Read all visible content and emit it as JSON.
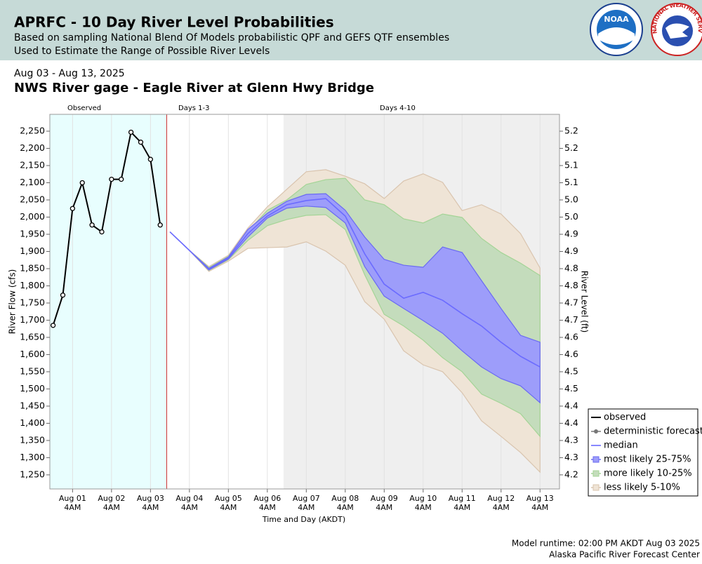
{
  "header": {
    "title": "APRFC - 10 Day River Level Probabilities",
    "subtitle1": "Based on sampling National Blend Of Models probabilistic QPF and GEFS QTF ensembles",
    "subtitle2": "Used to Estimate the Range of Possible River Levels",
    "noaa_logo_text": "NOAA",
    "nws_logo_text": "NATIONAL WEATHER SERVICE"
  },
  "chart_data": {
    "type": "probability_bands",
    "date_range": "Aug 03 - Aug 13, 2025",
    "title": "NWS River gage - Eagle River at Glenn Hwy Bridge",
    "xlabel": "Time and Day (AKDT)",
    "ylabel": "River Flow (cfs)",
    "y2label": "River Level (ft)",
    "xlim": [
      "2025-07-31T14:00",
      "2025-08-13T16:00"
    ],
    "xticks": [
      {
        "value": "2025-08-01T04:00",
        "label": [
          "Aug 01",
          "4AM"
        ]
      },
      {
        "value": "2025-08-02T04:00",
        "label": [
          "Aug 02",
          "4AM"
        ]
      },
      {
        "value": "2025-08-03T04:00",
        "label": [
          "Aug 03",
          "4AM"
        ]
      },
      {
        "value": "2025-08-04T04:00",
        "label": [
          "Aug 04",
          "4AM"
        ]
      },
      {
        "value": "2025-08-05T04:00",
        "label": [
          "Aug 05",
          "4AM"
        ]
      },
      {
        "value": "2025-08-06T04:00",
        "label": [
          "Aug 06",
          "4AM"
        ]
      },
      {
        "value": "2025-08-07T04:00",
        "label": [
          "Aug 07",
          "4AM"
        ]
      },
      {
        "value": "2025-08-08T04:00",
        "label": [
          "Aug 08",
          "4AM"
        ]
      },
      {
        "value": "2025-08-09T04:00",
        "label": [
          "Aug 09",
          "4AM"
        ]
      },
      {
        "value": "2025-08-10T04:00",
        "label": [
          "Aug 10",
          "4AM"
        ]
      },
      {
        "value": "2025-08-11T04:00",
        "label": [
          "Aug 11",
          "4AM"
        ]
      },
      {
        "value": "2025-08-12T04:00",
        "label": [
          "Aug 12",
          "4AM"
        ]
      },
      {
        "value": "2025-08-13T04:00",
        "label": [
          "Aug 13",
          "4AM"
        ]
      }
    ],
    "ylim": [
      1209,
      2299
    ],
    "yticks": [
      {
        "value": 1250,
        "label": "1,250"
      },
      {
        "value": 1300,
        "label": "1,300"
      },
      {
        "value": 1350,
        "label": "1,350"
      },
      {
        "value": 1400,
        "label": "1,400"
      },
      {
        "value": 1450,
        "label": "1,450"
      },
      {
        "value": 1500,
        "label": "1,500"
      },
      {
        "value": 1550,
        "label": "1,550"
      },
      {
        "value": 1600,
        "label": "1,600"
      },
      {
        "value": 1650,
        "label": "1,650"
      },
      {
        "value": 1700,
        "label": "1,700"
      },
      {
        "value": 1750,
        "label": "1,750"
      },
      {
        "value": 1800,
        "label": "1,800"
      },
      {
        "value": 1850,
        "label": "1,850"
      },
      {
        "value": 1900,
        "label": "1,900"
      },
      {
        "value": 1950,
        "label": "1,950"
      },
      {
        "value": 2000,
        "label": "2,000"
      },
      {
        "value": 2050,
        "label": "2,050"
      },
      {
        "value": 2100,
        "label": "2,100"
      },
      {
        "value": 2150,
        "label": "2,150"
      },
      {
        "value": 2200,
        "label": "2,200"
      },
      {
        "value": 2250,
        "label": "2,250"
      }
    ],
    "y2lim": [
      4.159,
      5.249
    ],
    "y2ticks": [
      4.2,
      {
        "value": 4.25,
        "label": "4.3"
      },
      4.3,
      {
        "value": 4.35,
        "label": "4.4"
      },
      4.4,
      {
        "value": 4.45,
        "label": "4.5"
      },
      4.5,
      {
        "value": 4.55,
        "label": "4.6"
      },
      4.6,
      {
        "value": 4.65,
        "label": "4.7"
      },
      4.7,
      {
        "value": 4.75,
        "label": "4.8"
      },
      4.8,
      {
        "value": 4.85,
        "label": "4.9"
      },
      4.9,
      {
        "value": 4.95,
        "label": "5.0"
      },
      {
        "value": 5,
        "label": "5.0"
      },
      {
        "value": 5.05,
        "label": "5.1"
      },
      5.1,
      {
        "value": 5.15,
        "label": "5.2"
      },
      5.2
    ],
    "grid": true,
    "regions": [
      {
        "label": "Observed",
        "start": "2025-07-31T14:00",
        "end": "2025-08-03T14:00",
        "color": "#e8fefe"
      },
      {
        "label": "Days 1-3",
        "start": "2025-08-03T14:00",
        "end": "2025-08-06T14:00",
        "color": "#ffffff"
      },
      {
        "label": "Days 4-10",
        "start": "2025-08-06T14:00",
        "end": "2025-08-13T16:00",
        "color": "#efefef"
      }
    ],
    "observed_end_line_color": "#cc3333",
    "observed": {
      "name": "observed",
      "color": "#000000",
      "x": [
        "2025-07-31T16:00",
        "2025-07-31T22:00",
        "2025-08-01T04:00",
        "2025-08-01T10:00",
        "2025-08-01T16:00",
        "2025-08-01T22:00",
        "2025-08-02T04:00",
        "2025-08-02T10:00",
        "2025-08-02T16:00",
        "2025-08-02T22:00",
        "2025-08-03T04:00",
        "2025-08-03T10:00"
      ],
      "values": [
        1685,
        1773,
        2025,
        2100,
        1977,
        1957,
        2110,
        2110,
        2247,
        2218,
        2168,
        1977
      ]
    },
    "deterministic": {
      "name": "deterministic forecast",
      "color": "#777777"
    },
    "forecast_x": [
      "2025-08-03T16:00",
      "2025-08-04T04:00",
      "2025-08-04T16:00",
      "2025-08-05T04:00",
      "2025-08-05T16:00",
      "2025-08-06T04:00",
      "2025-08-06T16:00",
      "2025-08-07T04:00",
      "2025-08-07T16:00",
      "2025-08-08T04:00",
      "2025-08-08T16:00",
      "2025-08-09T04:00",
      "2025-08-09T16:00",
      "2025-08-10T04:00",
      "2025-08-10T16:00",
      "2025-08-11T04:00",
      "2025-08-11T16:00",
      "2025-08-12T04:00",
      "2025-08-12T16:00",
      "2025-08-13T04:00"
    ],
    "median": {
      "name": "median",
      "color": "#6b6bff",
      "values": [
        1957,
        1903,
        1848,
        1881,
        1952,
        2003,
        2036,
        2048,
        2054,
        2003,
        1893,
        1805,
        1764,
        1781,
        1758,
        1719,
        1683,
        1636,
        1595,
        1564
      ]
    },
    "bands": [
      {
        "name": "less likely 5-10%",
        "color": "#efe4d6",
        "edge": "#d9c4ae",
        "lower": [
          1957,
          1903,
          1842,
          1872,
          1909,
          1911,
          1913,
          1928,
          1901,
          1860,
          1754,
          1703,
          1611,
          1570,
          1550,
          1489,
          1407,
          1362,
          1315,
          1258
        ],
        "upper": [
          1957,
          1903,
          1856,
          1889,
          1968,
          2030,
          2081,
          2132,
          2138,
          2119,
          2097,
          2054,
          2105,
          2126,
          2101,
          2019,
          2036,
          2009,
          1952,
          1852
        ]
      },
      {
        "name": "more likely 10-25%",
        "color": "#c4dcbc",
        "edge": "#a4d496",
        "lower": [
          1957,
          1903,
          1845,
          1876,
          1932,
          1975,
          1993,
          2005,
          2007,
          1964,
          1832,
          1717,
          1683,
          1642,
          1591,
          1550,
          1485,
          1458,
          1428,
          1362
        ],
        "upper": [
          1957,
          1903,
          1853,
          1886,
          1958,
          2020,
          2050,
          2095,
          2109,
          2113,
          2050,
          2036,
          1995,
          1983,
          2009,
          1999,
          1938,
          1897,
          1866,
          1830
        ]
      },
      {
        "name": "most likely 25-75%",
        "color": "#9d9dfa",
        "edge": "#6a6af2",
        "lower": [
          1957,
          1903,
          1846,
          1878,
          1942,
          1997,
          2026,
          2032,
          2028,
          1983,
          1856,
          1770,
          1734,
          1699,
          1662,
          1611,
          1564,
          1530,
          1509,
          1460
        ],
        "upper": [
          1957,
          1903,
          1851,
          1884,
          1964,
          2011,
          2046,
          2066,
          2068,
          2020,
          1942,
          1877,
          1860,
          1854,
          1913,
          1897,
          1815,
          1734,
          1656,
          1636
        ]
      }
    ],
    "legend_position": "lower right"
  },
  "footer": {
    "runtime": "Model runtime: 02:00 PM AKDT Aug 03 2025",
    "center": "Alaska Pacific River Forecast Center"
  }
}
